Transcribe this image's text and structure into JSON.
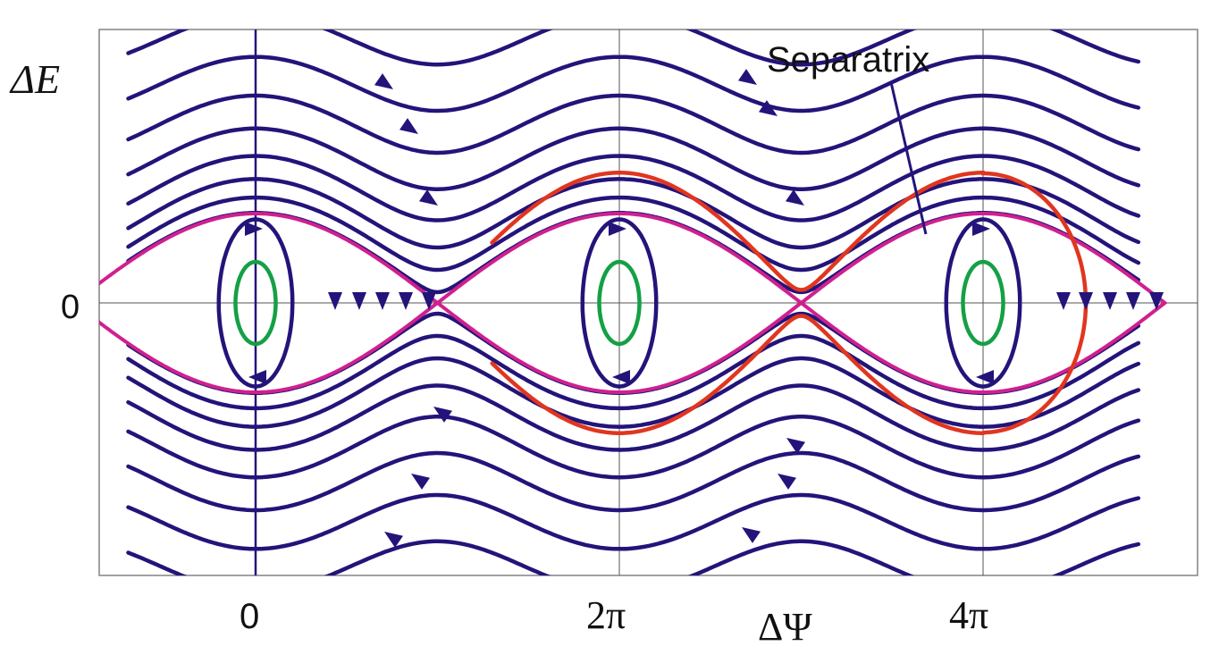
{
  "figure": {
    "y_axis_label": "ΔE",
    "x_axis_label": "ΔΨ",
    "y_tick_zero": "0",
    "x_ticks": [
      "0",
      "2π",
      "4π"
    ],
    "annotation": "Separatrix"
  },
  "colors": {
    "trajectory": "#23147a",
    "separatrix_inner": "#d0208f",
    "separatrix_outer": "#e0361f",
    "small_orbit": "#14a045",
    "frame": "#8a8a8a",
    "grid": "#555555"
  },
  "chart_data": {
    "type": "phase-portrait",
    "xlabel": "ΔΨ",
    "ylabel": "ΔE",
    "x_ticks": [
      {
        "value": 0,
        "label": "0"
      },
      {
        "value": 6.283,
        "label": "2π"
      },
      {
        "value": 12.566,
        "label": "4π"
      }
    ],
    "y_ticks": [
      {
        "value": 0,
        "label": "0"
      }
    ],
    "centers": [
      0,
      6.283,
      12.566
    ],
    "annotations": [
      "Separatrix"
    ]
  }
}
